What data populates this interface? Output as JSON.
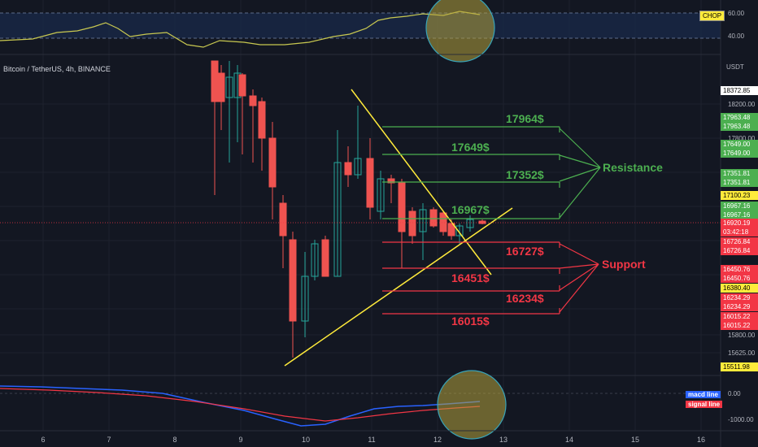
{
  "header": {
    "symbol_title": "Bitcoin / TetherUS, 4h, BINANCE",
    "axis_unit": "USDT"
  },
  "chop": {
    "badge": "CHOP",
    "levels": [
      "60.00",
      "40.00"
    ]
  },
  "macd": {
    "legend": [
      "macd line",
      "signal line"
    ],
    "levels": [
      "0.00",
      "-1000.00"
    ]
  },
  "time_axis": [
    "6",
    "7",
    "8",
    "9",
    "10",
    "11",
    "12",
    "13",
    "14",
    "15",
    "16"
  ],
  "price_ticks": [
    "18200.00",
    "17800.00",
    "15800.00",
    "15625.00"
  ],
  "price_tags": [
    {
      "text": "18372.85",
      "bg": "#ffffff",
      "fg": "#000000"
    },
    {
      "text": "17963.48",
      "bg": "#4caf50",
      "fg": "#ffffff"
    },
    {
      "text": "17963.48",
      "bg": "#4caf50",
      "fg": "#ffffff"
    },
    {
      "text": "17649.00",
      "bg": "#4caf50",
      "fg": "#ffffff"
    },
    {
      "text": "17649.00",
      "bg": "#4caf50",
      "fg": "#ffffff"
    },
    {
      "text": "17351.81",
      "bg": "#4caf50",
      "fg": "#ffffff"
    },
    {
      "text": "17351.81",
      "bg": "#4caf50",
      "fg": "#ffffff"
    },
    {
      "text": "17100.23",
      "bg": "#ffeb3b",
      "fg": "#000000"
    },
    {
      "text": "16967.16",
      "bg": "#4caf50",
      "fg": "#ffffff"
    },
    {
      "text": "16967.16",
      "bg": "#4caf50",
      "fg": "#ffffff"
    },
    {
      "text": "16920.19",
      "bg": "#f23645",
      "fg": "#ffffff"
    },
    {
      "text": "03:42:18",
      "bg": "#f23645",
      "fg": "#ffffff"
    },
    {
      "text": "16726.84",
      "bg": "#f23645",
      "fg": "#ffffff"
    },
    {
      "text": "16726.84",
      "bg": "#f23645",
      "fg": "#ffffff"
    },
    {
      "text": "16450.76",
      "bg": "#f23645",
      "fg": "#ffffff"
    },
    {
      "text": "16450.76",
      "bg": "#f23645",
      "fg": "#ffffff"
    },
    {
      "text": "16380.40",
      "bg": "#ffeb3b",
      "fg": "#000000"
    },
    {
      "text": "16234.29",
      "bg": "#f23645",
      "fg": "#ffffff"
    },
    {
      "text": "16234.29",
      "bg": "#f23645",
      "fg": "#ffffff"
    },
    {
      "text": "16015.22",
      "bg": "#f23645",
      "fg": "#ffffff"
    },
    {
      "text": "16015.22",
      "bg": "#f23645",
      "fg": "#ffffff"
    },
    {
      "text": "15511.98",
      "bg": "#ffeb3b",
      "fg": "#000000"
    }
  ],
  "annotations": {
    "resistance_levels": [
      "17964$",
      "17649$",
      "17352$",
      "16967$"
    ],
    "support_levels": [
      "16727$",
      "16451$",
      "16234$",
      "16015$"
    ],
    "resistance_label": "Resistance",
    "support_label": "Support"
  },
  "colors": {
    "background": "#131722",
    "up": "#26a69a",
    "down": "#ef5350",
    "resistance": "#4caf50",
    "support": "#f23645",
    "trendline": "#ffeb3b"
  }
}
